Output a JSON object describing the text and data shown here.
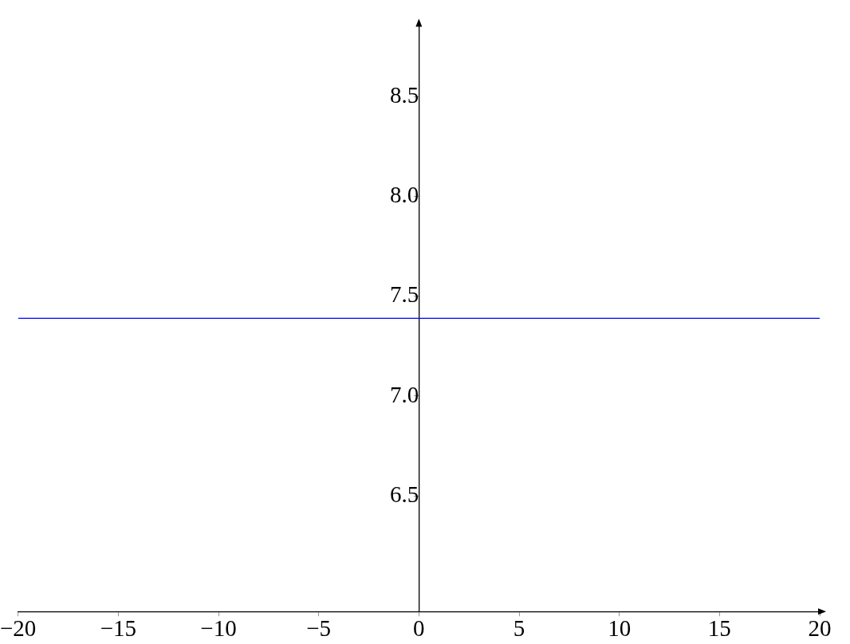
{
  "chart_data": {
    "type": "line",
    "x": [
      -20,
      20
    ],
    "series": [
      {
        "color": "#0000ff",
        "values": [
          7.39,
          7.39
        ]
      }
    ],
    "xlim": [
      -20,
      20
    ],
    "ylim": [
      5.92,
      8.86
    ],
    "xticks": [
      -20,
      -15,
      -10,
      -5,
      0,
      5,
      10,
      15,
      20
    ],
    "yticks": [
      {
        "value": 6.5,
        "label": "6.5"
      },
      {
        "value": 7,
        "label": "7.0"
      },
      {
        "value": 7.5,
        "label": "7.5"
      },
      {
        "value": 8,
        "label": "8.0"
      },
      {
        "value": 8.5,
        "label": "8.5"
      }
    ],
    "grid": false,
    "marker": "none",
    "line_style": "solid",
    "legend": false
  }
}
